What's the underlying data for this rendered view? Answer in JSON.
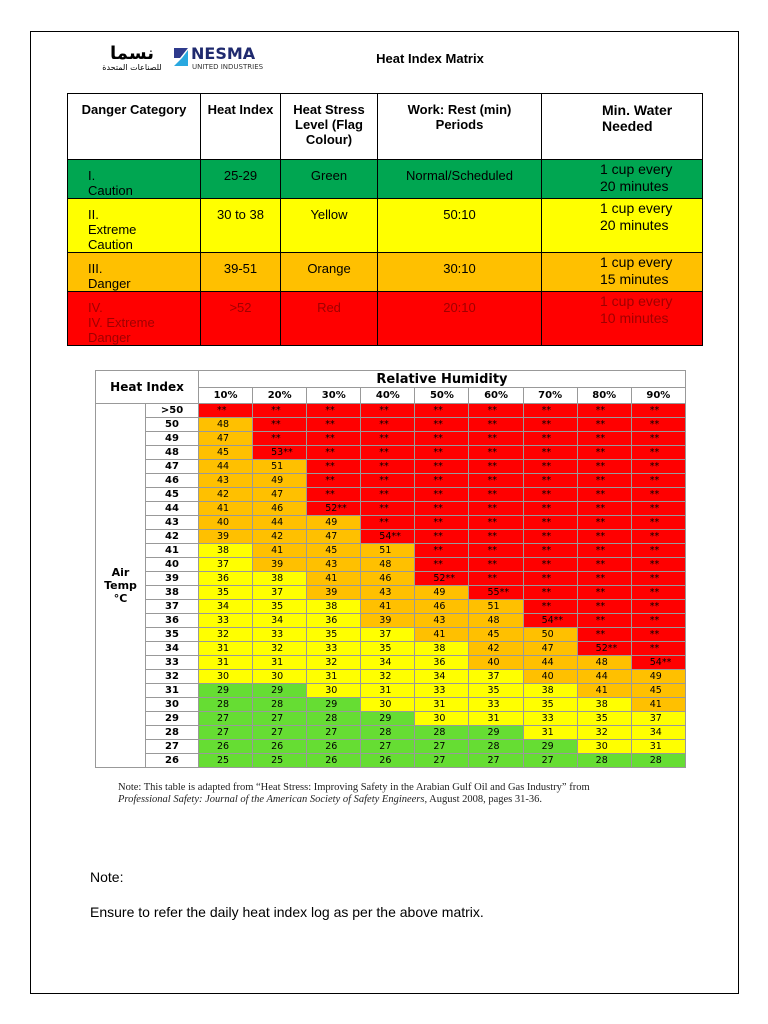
{
  "header": {
    "logo_arabic": "نسما",
    "logo_arabic_sub": "للصناعات المتحدة",
    "logo_name": "NESMA",
    "logo_sub": "UNITED INDUSTRIES",
    "title": "Heat Index Matrix"
  },
  "categories_table": {
    "columns": [
      "Danger Category",
      "Heat Index",
      "Heat Stress Level (Flag Colour)",
      "Work: Rest (min) Periods",
      "Min. Water Needed"
    ],
    "rows": [
      {
        "number": "I.",
        "category": "Caution",
        "heat_index": "25-29",
        "flag": "Green",
        "work_rest": "Normal/Scheduled",
        "water": "1 cup every 20 minutes",
        "color": "#00a651",
        "text_color": "#000000"
      },
      {
        "number": "II.",
        "category": "Extreme Caution",
        "heat_index": "30 to 38",
        "flag": "Yellow",
        "work_rest": "50:10",
        "water": "1 cup every 20 minutes",
        "color": "#ffff00",
        "text_color": "#000000"
      },
      {
        "number": "III.",
        "category": "Danger",
        "heat_index": "39-51",
        "flag": "Orange",
        "work_rest": "30:10",
        "water": "1 cup every 15 minutes",
        "color": "#ffc000",
        "text_color": "#000000"
      },
      {
        "number": "IV.",
        "category": "IV. Extreme Danger",
        "heat_index": ">52",
        "flag": "Red",
        "work_rest": "20:10",
        "water": "1 cup every 10 minutes",
        "color": "#ff0000",
        "text_color": "#a00000"
      }
    ]
  },
  "matrix": {
    "corner": "Heat Index",
    "humidity_title": "Relative Humidity",
    "humidity": [
      "10%",
      "20%",
      "30%",
      "40%",
      "50%",
      "60%",
      "70%",
      "80%",
      "90%"
    ],
    "air_temp_label": [
      "Air",
      "Temp",
      "°C"
    ],
    "palette": {
      "G": "#66dd33",
      "Y": "#ffff00",
      "O": "#ffc000",
      "R": "#ff0000"
    },
    "rows": [
      {
        "temp": ">50",
        "cells": [
          "**",
          "**",
          "**",
          "**",
          "**",
          "**",
          "**",
          "**",
          "**"
        ],
        "shades": "RRRRRRRRR"
      },
      {
        "temp": 50,
        "cells": [
          48,
          "**",
          "**",
          "**",
          "**",
          "**",
          "**",
          "**",
          "**"
        ],
        "shades": "ORRRRRRRR"
      },
      {
        "temp": 49,
        "cells": [
          47,
          "**",
          "**",
          "**",
          "**",
          "**",
          "**",
          "**",
          "**"
        ],
        "shades": "ORRRRRRRR"
      },
      {
        "temp": 48,
        "cells": [
          45,
          "53**",
          "**",
          "**",
          "**",
          "**",
          "**",
          "**",
          "**"
        ],
        "shades": "ORRRRRRRR"
      },
      {
        "temp": 47,
        "cells": [
          44,
          51,
          "**",
          "**",
          "**",
          "**",
          "**",
          "**",
          "**"
        ],
        "shades": "OORRRRRRR"
      },
      {
        "temp": 46,
        "cells": [
          43,
          49,
          "**",
          "**",
          "**",
          "**",
          "**",
          "**",
          "**"
        ],
        "shades": "OORRRRRRR"
      },
      {
        "temp": 45,
        "cells": [
          42,
          47,
          "**",
          "**",
          "**",
          "**",
          "**",
          "**",
          "**"
        ],
        "shades": "OORRRRRRR"
      },
      {
        "temp": 44,
        "cells": [
          41,
          46,
          "52**",
          "**",
          "**",
          "**",
          "**",
          "**",
          "**"
        ],
        "shades": "OORRRRRRR"
      },
      {
        "temp": 43,
        "cells": [
          40,
          44,
          49,
          "**",
          "**",
          "**",
          "**",
          "**",
          "**"
        ],
        "shades": "OOORRRRRR"
      },
      {
        "temp": 42,
        "cells": [
          39,
          42,
          47,
          "54**",
          "**",
          "**",
          "**",
          "**",
          "**"
        ],
        "shades": "OOORRRRRR"
      },
      {
        "temp": 41,
        "cells": [
          38,
          41,
          45,
          51,
          "**",
          "**",
          "**",
          "**",
          "**"
        ],
        "shades": "YOOORRRRR"
      },
      {
        "temp": 40,
        "cells": [
          37,
          39,
          43,
          48,
          "**",
          "**",
          "**",
          "**",
          "**"
        ],
        "shades": "YOOORRRRR"
      },
      {
        "temp": 39,
        "cells": [
          36,
          38,
          41,
          46,
          "52**",
          "**",
          "**",
          "**",
          "**"
        ],
        "shades": "YYOORRRRR"
      },
      {
        "temp": 38,
        "cells": [
          35,
          37,
          39,
          43,
          49,
          "55**",
          "**",
          "**",
          "**"
        ],
        "shades": "YYOOORRRR"
      },
      {
        "temp": 37,
        "cells": [
          34,
          35,
          38,
          41,
          46,
          51,
          "**",
          "**",
          "**"
        ],
        "shades": "YYYOOORRR"
      },
      {
        "temp": 36,
        "cells": [
          33,
          34,
          36,
          39,
          43,
          48,
          "54**",
          "**",
          "**"
        ],
        "shades": "YYYOOORRR"
      },
      {
        "temp": 35,
        "cells": [
          32,
          33,
          35,
          37,
          41,
          45,
          50,
          "**",
          "**"
        ],
        "shades": "YYYYOOORR"
      },
      {
        "temp": 34,
        "cells": [
          31,
          32,
          33,
          35,
          38,
          42,
          47,
          "52**",
          "**"
        ],
        "shades": "YYYYYOORR"
      },
      {
        "temp": 33,
        "cells": [
          31,
          31,
          32,
          34,
          36,
          40,
          44,
          48,
          "54**"
        ],
        "shades": "YYYYYOOOR"
      },
      {
        "temp": 32,
        "cells": [
          30,
          30,
          31,
          32,
          34,
          37,
          40,
          44,
          49
        ],
        "shades": "YYYYYYOOO"
      },
      {
        "temp": 31,
        "cells": [
          29,
          29,
          30,
          31,
          33,
          35,
          38,
          41,
          45
        ],
        "shades": "GGYYYYYOO"
      },
      {
        "temp": 30,
        "cells": [
          28,
          28,
          29,
          30,
          31,
          33,
          35,
          38,
          41
        ],
        "shades": "GGGYYYYYO"
      },
      {
        "temp": 29,
        "cells": [
          27,
          27,
          28,
          29,
          30,
          31,
          33,
          35,
          37
        ],
        "shades": "GGGGYYYYY"
      },
      {
        "temp": 28,
        "cells": [
          27,
          27,
          27,
          28,
          28,
          29,
          31,
          32,
          34
        ],
        "shades": "GGGGGGYYY"
      },
      {
        "temp": 27,
        "cells": [
          26,
          26,
          26,
          27,
          27,
          28,
          29,
          30,
          31
        ],
        "shades": "GGGGGGGYY"
      },
      {
        "temp": 26,
        "cells": [
          25,
          25,
          26,
          26,
          27,
          27,
          27,
          28,
          28
        ],
        "shades": "GGGGGGGGG"
      }
    ]
  },
  "source_note": {
    "line1": "Note:  This table is adapted from “Heat Stress:  Improving Safety in the Arabian Gulf Oil and Gas Industry” from",
    "journal": "Professional Safety:  Journal of the American Society of Safety Engineers",
    "rest": ", August 2008, pages 31-36."
  },
  "notes": {
    "heading": "Note:",
    "text": "Ensure to refer the daily heat index log as per the above matrix."
  }
}
